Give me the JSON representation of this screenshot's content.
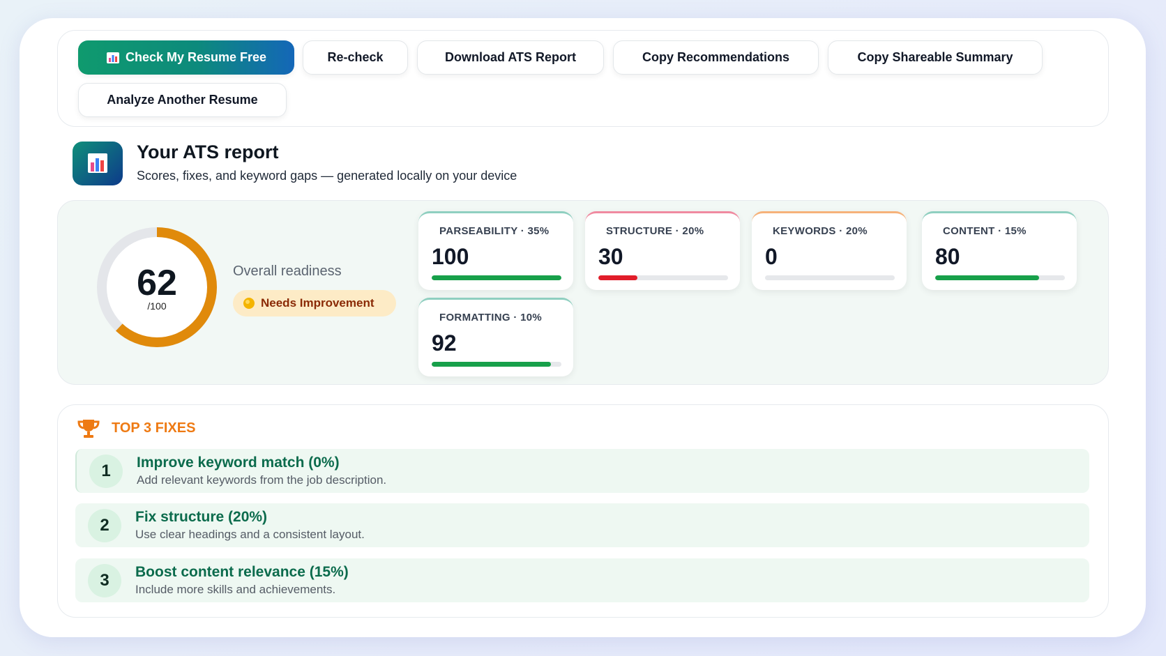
{
  "toolbar": {
    "buttons": [
      "Check My Resume Free",
      "Re-check",
      "Download ATS Report",
      "Copy Recommendations",
      "Copy Shareable Summary",
      "Analyze Another Resume"
    ]
  },
  "header": {
    "title": "Your ATS report",
    "subtitle": "Scores, fixes, and keyword gaps — generated locally on your device"
  },
  "score": {
    "value": 62,
    "max": {
      "value": 100,
      "label": "/100"
    },
    "caption": "Overall readiness",
    "status": "Needs Improvement"
  },
  "metrics": [
    {
      "label": "PARSEABILITY · 35%",
      "value": 100
    },
    {
      "label": "STRUCTURE · 20%",
      "value": 30
    },
    {
      "label": "KEYWORDS · 20%",
      "value": 0
    },
    {
      "label": "CONTENT · 15%",
      "value": 80
    },
    {
      "label": "FORMATTING · 10%",
      "value": 92
    }
  ],
  "fixes": {
    "title": "TOP 3 FIXES",
    "items": [
      {
        "number": 1,
        "title": "Improve keyword match (0%)",
        "description": "Add relevant keywords from the job description."
      },
      {
        "number": 2,
        "title": "Fix structure (20%)",
        "description": "Use clear headings and a consistent layout."
      },
      {
        "number": 3,
        "title": "Boost content relevance (15%)",
        "description": "Include more skills and achievements."
      }
    ]
  }
}
